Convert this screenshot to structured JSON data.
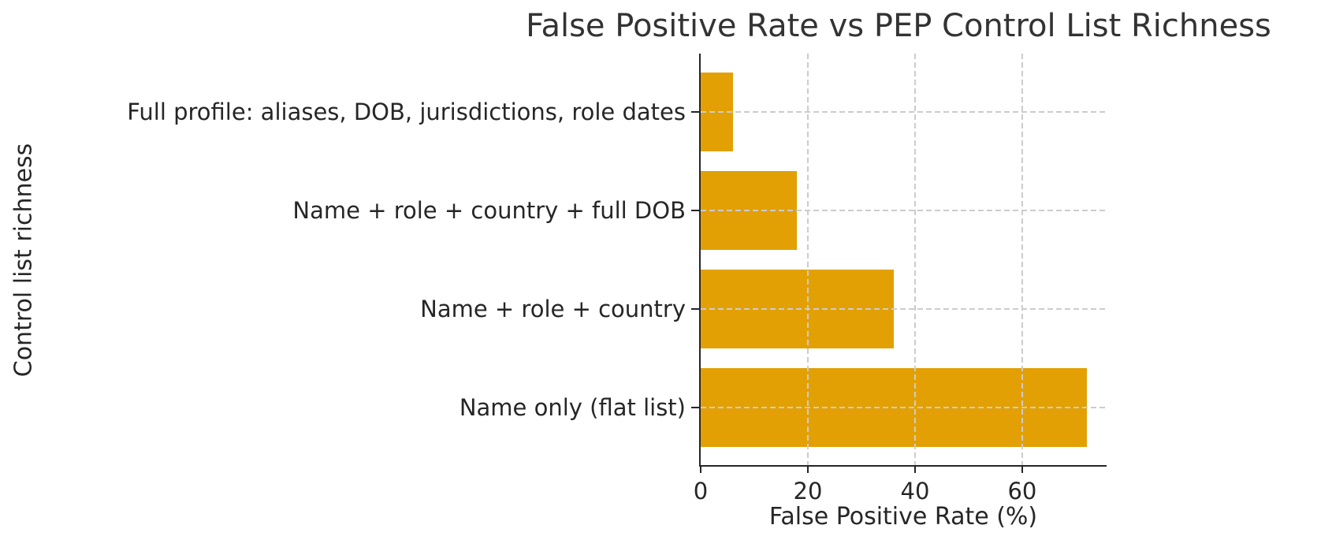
{
  "chart_data": {
    "type": "bar",
    "orientation": "horizontal",
    "title": "False Positive Rate vs PEP Control List Richness",
    "xlabel": "False Positive Rate (%)",
    "ylabel": "Control list richness",
    "categories": [
      "Full profile: aliases, DOB, jurisdictions, role dates",
      "Name + role + country + full DOB",
      "Name + role + country",
      "Name only (flat list)"
    ],
    "values": [
      6,
      18,
      36,
      72
    ],
    "xticks": [
      0,
      20,
      40,
      60
    ],
    "xlim": [
      0,
      75.6
    ],
    "grid": true,
    "grid_style": "dashed",
    "grid_above_bars": true,
    "legend": "none",
    "bar_color": "#E2A004",
    "grid_color": "#cccccc",
    "text_color": "#262626",
    "title_color": "#333333",
    "spine_color": "#262626",
    "background_color": "#ffffff"
  }
}
